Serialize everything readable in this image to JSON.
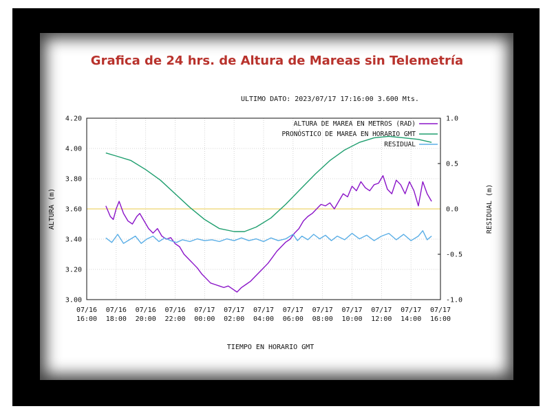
{
  "page": {
    "title": "Grafica de 24 hrs. de Altura de Mareas sin Telemetría",
    "last_data": "ULTIMO DATO: 2023/07/17  17:16:00 3.600 Mts."
  },
  "chart_data": {
    "type": "line",
    "title": "Grafica de 24 hrs. de Altura de Mareas sin Telemetría",
    "xlabel": "TIEMPO EN HORARIO GMT",
    "ylabel": "ALTURA (m)",
    "y2label": "RESIDUAL (m)",
    "x_range_hours": [
      0,
      24
    ],
    "x_ticks": [
      {
        "h": 0,
        "date": "07/16",
        "time": "16:00"
      },
      {
        "h": 2,
        "date": "07/16",
        "time": "18:00"
      },
      {
        "h": 4,
        "date": "07/16",
        "time": "20:00"
      },
      {
        "h": 6,
        "date": "07/16",
        "time": "22:00"
      },
      {
        "h": 8,
        "date": "07/17",
        "time": "00:00"
      },
      {
        "h": 10,
        "date": "07/17",
        "time": "02:00"
      },
      {
        "h": 12,
        "date": "07/17",
        "time": "04:00"
      },
      {
        "h": 14,
        "date": "07/17",
        "time": "06:00"
      },
      {
        "h": 16,
        "date": "07/17",
        "time": "08:00"
      },
      {
        "h": 18,
        "date": "07/17",
        "time": "10:00"
      },
      {
        "h": 20,
        "date": "07/17",
        "time": "12:00"
      },
      {
        "h": 22,
        "date": "07/17",
        "time": "14:00"
      },
      {
        "h": 24,
        "date": "07/17",
        "time": "16:00"
      }
    ],
    "ylim": [
      3.0,
      4.2
    ],
    "y_ticks": [
      "3.00",
      "3.20",
      "3.40",
      "3.60",
      "3.80",
      "4.00",
      "4.20"
    ],
    "y2lim": [
      -1.0,
      1.0
    ],
    "y2_ticks": [
      "-1.0",
      "-0.5",
      "0.0",
      "0.5",
      "1.0"
    ],
    "zero_line_color": "#e8c84a",
    "legend_position": "top-right",
    "series": [
      {
        "name": "ALTURA DE MAREA EN METROS (RAD)",
        "axis": "left",
        "color": "#8a14c8",
        "points": [
          [
            1.3,
            3.62
          ],
          [
            1.6,
            3.55
          ],
          [
            1.8,
            3.53
          ],
          [
            2.0,
            3.6
          ],
          [
            2.2,
            3.65
          ],
          [
            2.5,
            3.57
          ],
          [
            2.8,
            3.52
          ],
          [
            3.1,
            3.5
          ],
          [
            3.4,
            3.55
          ],
          [
            3.6,
            3.57
          ],
          [
            3.9,
            3.52
          ],
          [
            4.2,
            3.47
          ],
          [
            4.5,
            3.44
          ],
          [
            4.8,
            3.47
          ],
          [
            5.1,
            3.42
          ],
          [
            5.4,
            3.4
          ],
          [
            5.7,
            3.41
          ],
          [
            6.0,
            3.37
          ],
          [
            6.3,
            3.35
          ],
          [
            6.6,
            3.3
          ],
          [
            6.9,
            3.27
          ],
          [
            7.2,
            3.24
          ],
          [
            7.5,
            3.21
          ],
          [
            7.8,
            3.17
          ],
          [
            8.1,
            3.14
          ],
          [
            8.4,
            3.11
          ],
          [
            8.7,
            3.1
          ],
          [
            9.0,
            3.09
          ],
          [
            9.3,
            3.08
          ],
          [
            9.6,
            3.09
          ],
          [
            9.9,
            3.07
          ],
          [
            10.2,
            3.05
          ],
          [
            10.5,
            3.08
          ],
          [
            10.8,
            3.1
          ],
          [
            11.1,
            3.12
          ],
          [
            11.4,
            3.15
          ],
          [
            11.7,
            3.18
          ],
          [
            12.0,
            3.21
          ],
          [
            12.3,
            3.24
          ],
          [
            12.6,
            3.28
          ],
          [
            12.9,
            3.32
          ],
          [
            13.2,
            3.35
          ],
          [
            13.5,
            3.38
          ],
          [
            13.8,
            3.4
          ],
          [
            14.1,
            3.44
          ],
          [
            14.4,
            3.47
          ],
          [
            14.7,
            3.52
          ],
          [
            15.0,
            3.55
          ],
          [
            15.3,
            3.57
          ],
          [
            15.6,
            3.6
          ],
          [
            15.9,
            3.63
          ],
          [
            16.2,
            3.62
          ],
          [
            16.5,
            3.64
          ],
          [
            16.8,
            3.6
          ],
          [
            17.1,
            3.65
          ],
          [
            17.4,
            3.7
          ],
          [
            17.7,
            3.68
          ],
          [
            18.0,
            3.75
          ],
          [
            18.3,
            3.72
          ],
          [
            18.6,
            3.78
          ],
          [
            18.9,
            3.74
          ],
          [
            19.2,
            3.72
          ],
          [
            19.5,
            3.76
          ],
          [
            19.8,
            3.77
          ],
          [
            20.1,
            3.82
          ],
          [
            20.4,
            3.73
          ],
          [
            20.7,
            3.7
          ],
          [
            21.0,
            3.79
          ],
          [
            21.3,
            3.76
          ],
          [
            21.6,
            3.7
          ],
          [
            21.9,
            3.78
          ],
          [
            22.2,
            3.72
          ],
          [
            22.5,
            3.62
          ],
          [
            22.8,
            3.78
          ],
          [
            23.1,
            3.7
          ],
          [
            23.4,
            3.65
          ]
        ]
      },
      {
        "name": "PRONÓSTICO DE MAREA EN HORARIO GMT",
        "axis": "left",
        "color": "#1e9e6e",
        "points": [
          [
            1.3,
            3.97
          ],
          [
            2.0,
            3.95
          ],
          [
            3.0,
            3.92
          ],
          [
            4.0,
            3.86
          ],
          [
            5.0,
            3.79
          ],
          [
            6.0,
            3.7
          ],
          [
            7.0,
            3.61
          ],
          [
            8.0,
            3.53
          ],
          [
            9.0,
            3.47
          ],
          [
            10.0,
            3.45
          ],
          [
            10.7,
            3.45
          ],
          [
            11.5,
            3.48
          ],
          [
            12.5,
            3.54
          ],
          [
            13.5,
            3.63
          ],
          [
            14.5,
            3.73
          ],
          [
            15.5,
            3.83
          ],
          [
            16.5,
            3.92
          ],
          [
            17.5,
            3.99
          ],
          [
            18.5,
            4.04
          ],
          [
            19.5,
            4.07
          ],
          [
            20.5,
            4.08
          ],
          [
            21.5,
            4.07
          ],
          [
            22.5,
            4.06
          ],
          [
            23.4,
            4.04
          ]
        ]
      },
      {
        "name": "RESIDUAL",
        "axis": "right",
        "color": "#5aaee6",
        "points": [
          [
            1.3,
            -0.32
          ],
          [
            1.7,
            -0.37
          ],
          [
            2.1,
            -0.28
          ],
          [
            2.5,
            -0.38
          ],
          [
            2.9,
            -0.34
          ],
          [
            3.3,
            -0.3
          ],
          [
            3.7,
            -0.38
          ],
          [
            4.1,
            -0.33
          ],
          [
            4.5,
            -0.3
          ],
          [
            4.9,
            -0.36
          ],
          [
            5.3,
            -0.32
          ],
          [
            5.7,
            -0.35
          ],
          [
            6.1,
            -0.37
          ],
          [
            6.5,
            -0.34
          ],
          [
            7.0,
            -0.36
          ],
          [
            7.5,
            -0.33
          ],
          [
            8.0,
            -0.35
          ],
          [
            8.5,
            -0.34
          ],
          [
            9.0,
            -0.36
          ],
          [
            9.5,
            -0.33
          ],
          [
            10.0,
            -0.35
          ],
          [
            10.5,
            -0.32
          ],
          [
            11.0,
            -0.35
          ],
          [
            11.5,
            -0.33
          ],
          [
            12.0,
            -0.36
          ],
          [
            12.5,
            -0.32
          ],
          [
            13.0,
            -0.35
          ],
          [
            13.5,
            -0.33
          ],
          [
            14.0,
            -0.28
          ],
          [
            14.3,
            -0.35
          ],
          [
            14.6,
            -0.3
          ],
          [
            15.0,
            -0.34
          ],
          [
            15.4,
            -0.28
          ],
          [
            15.8,
            -0.33
          ],
          [
            16.2,
            -0.29
          ],
          [
            16.6,
            -0.35
          ],
          [
            17.0,
            -0.3
          ],
          [
            17.5,
            -0.34
          ],
          [
            18.0,
            -0.27
          ],
          [
            18.5,
            -0.33
          ],
          [
            19.0,
            -0.29
          ],
          [
            19.5,
            -0.35
          ],
          [
            20.0,
            -0.3
          ],
          [
            20.5,
            -0.27
          ],
          [
            21.0,
            -0.34
          ],
          [
            21.5,
            -0.28
          ],
          [
            22.0,
            -0.35
          ],
          [
            22.5,
            -0.3
          ],
          [
            22.8,
            -0.24
          ],
          [
            23.1,
            -0.34
          ],
          [
            23.4,
            -0.3
          ]
        ]
      }
    ]
  }
}
